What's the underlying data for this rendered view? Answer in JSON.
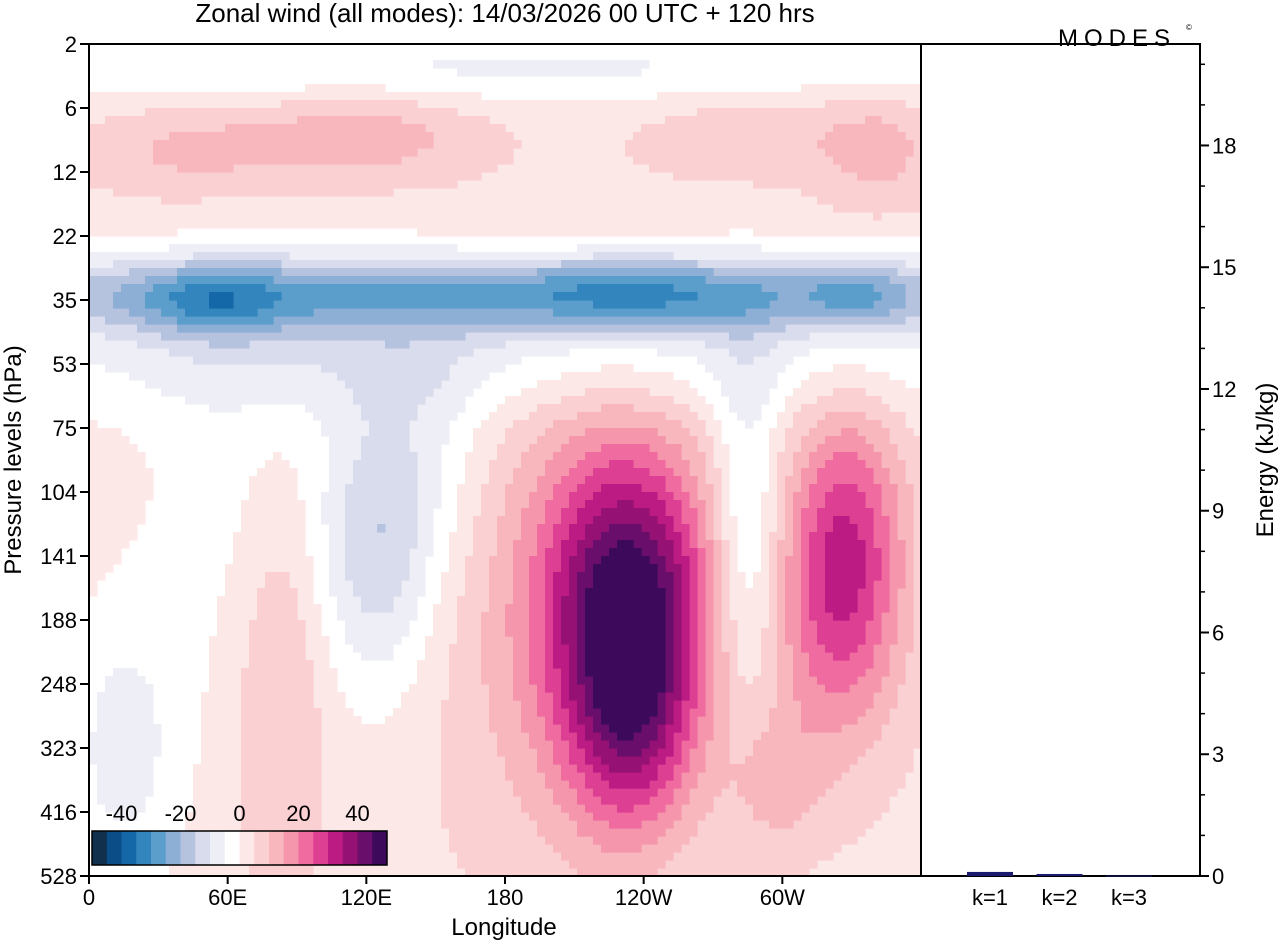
{
  "chart_data": [
    {
      "type": "heatmap",
      "title": "Zonal wind (all modes):  14/03/2026  00 UTC  + 120 hrs",
      "xlabel": "Longitude",
      "ylabel": "Pressure levels (hPa)",
      "x_ticks": [
        "0",
        "60E",
        "120E",
        "180",
        "120W",
        "60W"
      ],
      "y_ticks": [
        "2",
        "6",
        "12",
        "22",
        "35",
        "53",
        "75",
        "104",
        "141",
        "188",
        "248",
        "323",
        "416",
        "528"
      ],
      "colorbar_ticks": [
        "-40",
        "-20",
        "0",
        "20",
        "40"
      ],
      "colorbar_colors": [
        "#10304e",
        "#0b4d86",
        "#1468a8",
        "#3385bd",
        "#5c9ecb",
        "#8daed5",
        "#b6c3df",
        "#d9dcec",
        "#eeeef6",
        "#ffffff",
        "#fde8e8",
        "#fbd0d3",
        "#f8b6bd",
        "#f596ac",
        "#ef6ba0",
        "#dd3f92",
        "#bb1b83",
        "#951174",
        "#6a0e6c",
        "#3d0a5b"
      ],
      "vmin": -50,
      "vmax": 50
    },
    {
      "type": "bar",
      "ylabel": "Energy (kJ/kg)",
      "categories": [
        "k=1",
        "k=2",
        "k=3"
      ],
      "values": [
        0.1,
        0.05,
        0.01
      ],
      "ylim": [
        0,
        20.5
      ],
      "y_ticks": [
        "0",
        "3",
        "6",
        "9",
        "12",
        "15",
        "18"
      ],
      "bar_color": "#1a1a6e"
    }
  ],
  "branding": {
    "logo_text": "MODES"
  }
}
